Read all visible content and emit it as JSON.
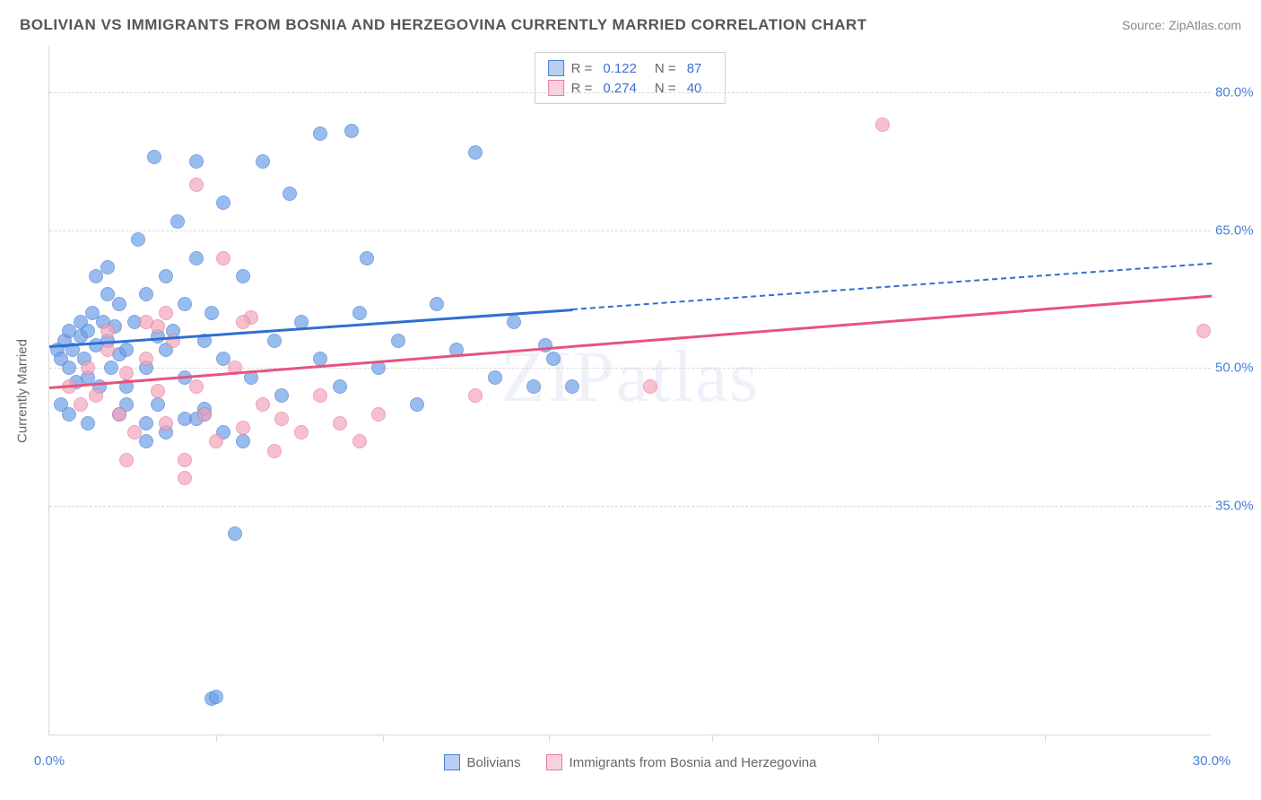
{
  "title": "BOLIVIAN VS IMMIGRANTS FROM BOSNIA AND HERZEGOVINA CURRENTLY MARRIED CORRELATION CHART",
  "source": "Source: ZipAtlas.com",
  "watermark": "ZIPatlas",
  "chart": {
    "type": "scatter",
    "y_axis_label": "Currently Married",
    "background_color": "#ffffff",
    "grid_color": "#d8d8d8",
    "grid_dash": true,
    "text_color": "#666666",
    "tick_label_color": "#4a7fd8",
    "xlim": [
      0,
      30
    ],
    "ylim": [
      10,
      85
    ],
    "x_ticks": [
      0,
      30
    ],
    "x_tick_labels": [
      "0.0%",
      "30.0%"
    ],
    "x_minor_ticks": [
      4.3,
      8.6,
      12.9,
      17.1,
      21.4,
      25.7
    ],
    "y_ticks": [
      35,
      50,
      65,
      80
    ],
    "y_tick_labels": [
      "35.0%",
      "50.0%",
      "65.0%",
      "80.0%"
    ],
    "marker_radius": 8,
    "marker_fill_opacity": 0.35,
    "marker_stroke_width": 1.5,
    "series": [
      {
        "name": "Bolivians",
        "color": "#6fa0e8",
        "stroke": "#4a7fd8",
        "R": "0.122",
        "N": "87",
        "trend": {
          "x1": 0,
          "y1": 52.5,
          "x2": 13.5,
          "y2": 56.5,
          "dash_from_x": 13.5,
          "x2_ext": 30,
          "y2_ext": 61.5,
          "color": "#2f6fd0"
        },
        "points": [
          [
            0.2,
            52
          ],
          [
            0.3,
            51
          ],
          [
            0.4,
            53
          ],
          [
            0.5,
            50
          ],
          [
            0.5,
            54
          ],
          [
            0.6,
            52
          ],
          [
            0.7,
            48.5
          ],
          [
            0.8,
            53.5
          ],
          [
            0.8,
            55
          ],
          [
            0.9,
            51
          ],
          [
            1.0,
            54
          ],
          [
            1.0,
            49
          ],
          [
            1.1,
            56
          ],
          [
            1.2,
            52.5
          ],
          [
            1.3,
            48
          ],
          [
            1.4,
            55
          ],
          [
            1.5,
            53
          ],
          [
            1.6,
            50
          ],
          [
            1.7,
            54.5
          ],
          [
            1.8,
            51.5
          ],
          [
            1.5,
            61
          ],
          [
            1.8,
            57
          ],
          [
            2.0,
            52
          ],
          [
            2.0,
            48
          ],
          [
            2.2,
            55
          ],
          [
            2.3,
            64
          ],
          [
            2.5,
            50
          ],
          [
            2.5,
            58
          ],
          [
            2.7,
            73
          ],
          [
            2.8,
            46
          ],
          [
            3.0,
            52
          ],
          [
            3.0,
            60
          ],
          [
            3.2,
            54
          ],
          [
            3.3,
            66
          ],
          [
            3.5,
            49
          ],
          [
            3.5,
            57
          ],
          [
            3.8,
            72.5
          ],
          [
            3.8,
            62
          ],
          [
            4.0,
            45
          ],
          [
            4.0,
            53
          ],
          [
            4.2,
            56
          ],
          [
            4.5,
            68
          ],
          [
            4.5,
            51
          ],
          [
            4.8,
            32
          ],
          [
            5.0,
            60
          ],
          [
            5.2,
            49
          ],
          [
            5.5,
            72.5
          ],
          [
            5.8,
            53
          ],
          [
            6.0,
            47
          ],
          [
            6.2,
            69
          ],
          [
            6.5,
            55
          ],
          [
            7.0,
            75.5
          ],
          [
            7.0,
            51
          ],
          [
            7.5,
            48
          ],
          [
            7.8,
            75.8
          ],
          [
            8.0,
            56
          ],
          [
            8.2,
            62
          ],
          [
            8.5,
            50
          ],
          [
            9.0,
            53
          ],
          [
            9.5,
            46
          ],
          [
            10.0,
            57
          ],
          [
            10.5,
            52
          ],
          [
            11.0,
            73.5
          ],
          [
            11.5,
            49
          ],
          [
            12.0,
            55
          ],
          [
            12.5,
            48
          ],
          [
            13.0,
            51
          ],
          [
            4.2,
            14
          ],
          [
            4.3,
            14.2
          ],
          [
            2.5,
            42
          ],
          [
            3.0,
            43
          ],
          [
            3.5,
            44.5
          ],
          [
            4.0,
            45.5
          ],
          [
            4.5,
            43
          ],
          [
            5.0,
            42
          ],
          [
            2.0,
            46
          ],
          [
            2.5,
            44
          ],
          [
            1.8,
            45
          ],
          [
            0.3,
            46
          ],
          [
            0.5,
            45
          ],
          [
            1.0,
            44
          ],
          [
            13.5,
            48
          ],
          [
            12.8,
            52.5
          ],
          [
            3.8,
            44.5
          ],
          [
            2.8,
            53.5
          ],
          [
            1.2,
            60
          ],
          [
            1.5,
            58
          ]
        ]
      },
      {
        "name": "Immigrants from Bosnia and Herzegovina",
        "color": "#f4a6bb",
        "stroke": "#e87a9c",
        "R": "0.274",
        "N": "40",
        "trend": {
          "x1": 0,
          "y1": 48,
          "x2": 30,
          "y2": 58,
          "color": "#e8537d"
        },
        "points": [
          [
            0.5,
            48
          ],
          [
            0.8,
            46
          ],
          [
            1.0,
            50
          ],
          [
            1.2,
            47
          ],
          [
            1.5,
            52
          ],
          [
            1.8,
            45
          ],
          [
            2.0,
            49.5
          ],
          [
            2.2,
            43
          ],
          [
            2.5,
            51
          ],
          [
            2.8,
            47.5
          ],
          [
            3.0,
            44
          ],
          [
            3.2,
            53
          ],
          [
            3.5,
            40
          ],
          [
            3.8,
            48
          ],
          [
            4.0,
            45
          ],
          [
            4.3,
            42
          ],
          [
            4.8,
            50
          ],
          [
            5.0,
            43.5
          ],
          [
            5.5,
            46
          ],
          [
            5.8,
            41
          ],
          [
            6.0,
            44.5
          ],
          [
            6.5,
            43
          ],
          [
            7.0,
            47
          ],
          [
            7.5,
            44
          ],
          [
            8.0,
            42
          ],
          [
            8.5,
            45
          ],
          [
            2.5,
            55
          ],
          [
            3.0,
            56
          ],
          [
            3.8,
            70
          ],
          [
            4.5,
            62
          ],
          [
            5.2,
            55.5
          ],
          [
            11.0,
            47
          ],
          [
            15.5,
            48
          ],
          [
            21.5,
            76.5
          ],
          [
            29.8,
            54
          ],
          [
            2.0,
            40
          ],
          [
            3.5,
            38
          ],
          [
            1.5,
            54
          ],
          [
            2.8,
            54.5
          ],
          [
            5.0,
            55
          ]
        ]
      }
    ]
  }
}
